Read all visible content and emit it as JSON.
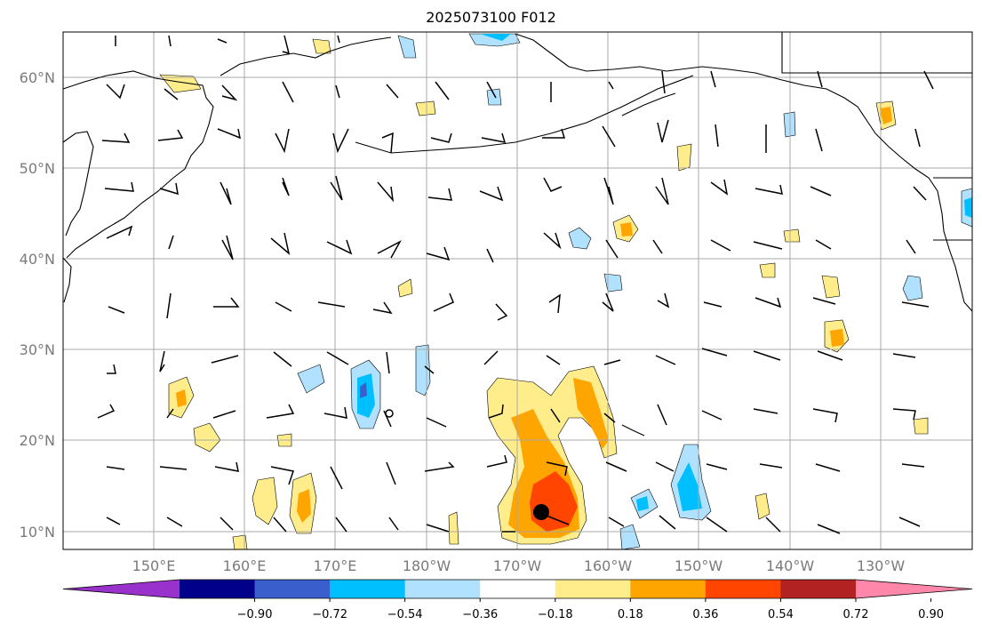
{
  "title": "2025073100 F012",
  "map": {
    "lat_labels": [
      "60°N",
      "50°N",
      "40°N",
      "30°N",
      "20°N",
      "10°N"
    ],
    "lon_labels": [
      "150°E",
      "160°E",
      "170°E",
      "180°W",
      "170°W",
      "160°W",
      "150°W",
      "140°W",
      "130°W"
    ],
    "center_marker": {
      "lon": -167,
      "lat": 12
    }
  },
  "colorbar": {
    "labels": [
      "−0.90",
      "−0.72",
      "−0.54",
      "−0.36",
      "−0.18",
      "0.18",
      "0.36",
      "0.54",
      "0.72",
      "0.90"
    ],
    "colors": [
      "#9932cc",
      "#00008b",
      "#3a5fcd",
      "#00bfff",
      "#b0e2ff",
      "#ffffff",
      "#ffec8b",
      "#ffa500",
      "#ff4500",
      "#b22222",
      "#ff88aa"
    ]
  }
}
